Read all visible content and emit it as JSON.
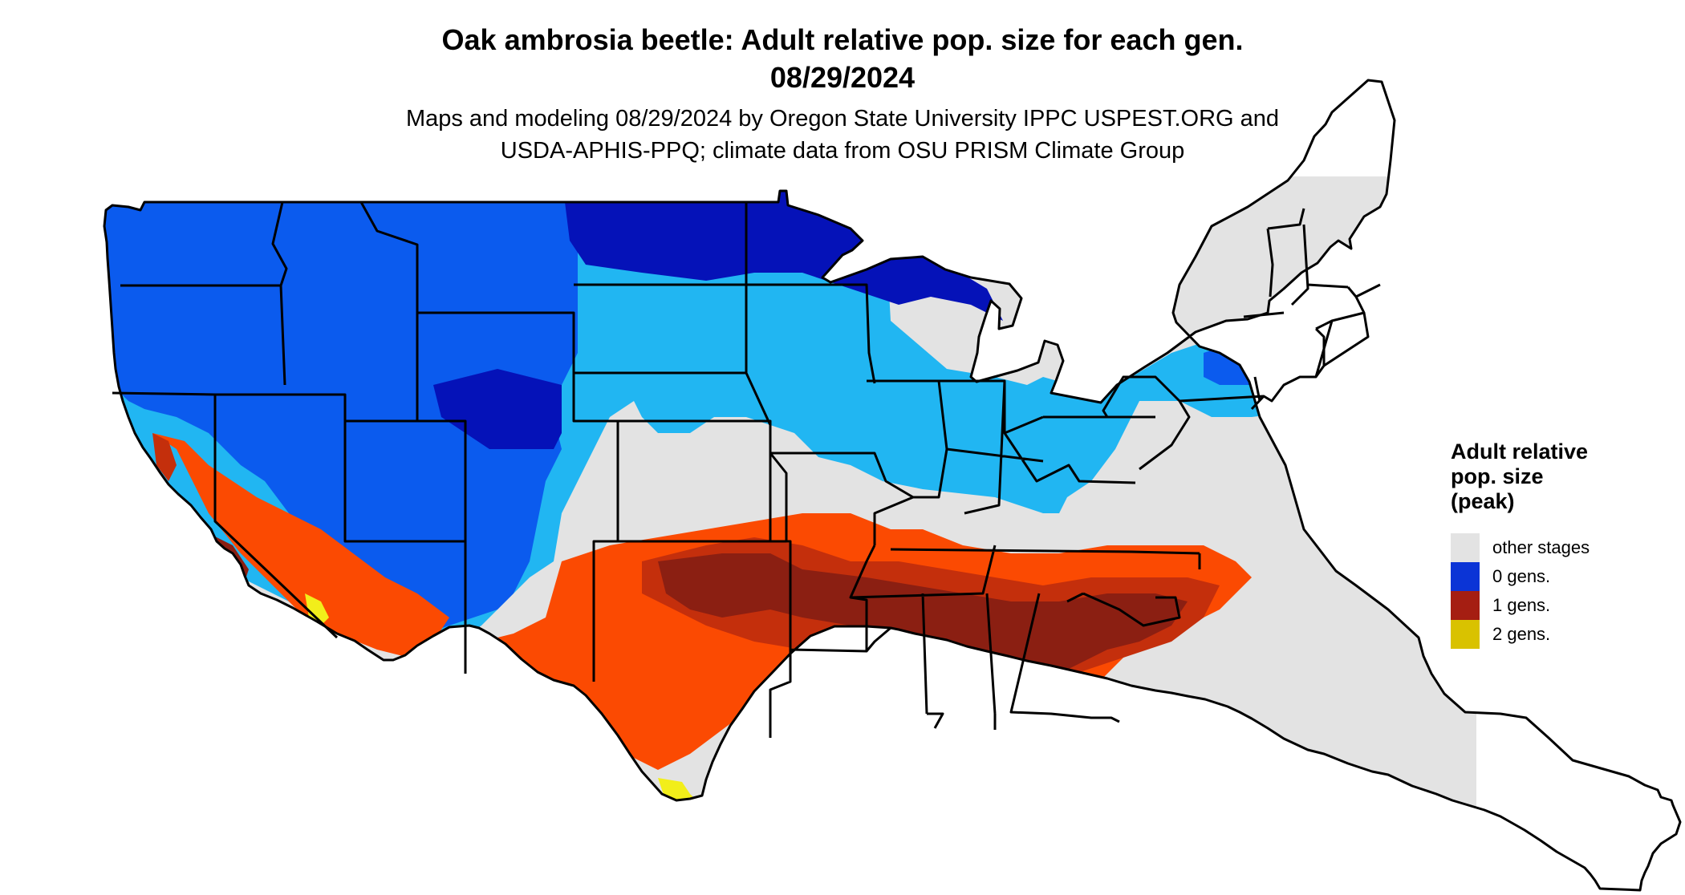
{
  "header": {
    "title_line1": "Oak ambrosia beetle: Adult relative pop. size for each gen.",
    "title_line2": "08/29/2024",
    "subtitle_line1": "Maps and modeling 08/29/2024 by Oregon State University IPPC USPEST.ORG and",
    "subtitle_line2": "USDA-APHIS-PPQ; climate data from OSU PRISM Climate Group"
  },
  "legend": {
    "title": "Adult relative pop. size (peak)",
    "items": [
      {
        "label": "other stages",
        "color": "#e3e3e3"
      },
      {
        "label": "0 gens.",
        "color": "#0b34d6"
      },
      {
        "label": "1 gens.",
        "color": "#a51e12"
      },
      {
        "label": "2 gens.",
        "color": "#d9c200"
      }
    ]
  },
  "map": {
    "colors": {
      "other_stages": "#e3e3e3",
      "zero_gens_dark": "#0512b8",
      "zero_gens_mid": "#0b5bee",
      "zero_gens_light": "#21b6f2",
      "one_gens_dark": "#8b1f12",
      "one_gens_mid": "#c42f0c",
      "one_gens_light": "#fb4a02",
      "two_gens": "#f2ee1a",
      "boundary": "#000000"
    }
  }
}
